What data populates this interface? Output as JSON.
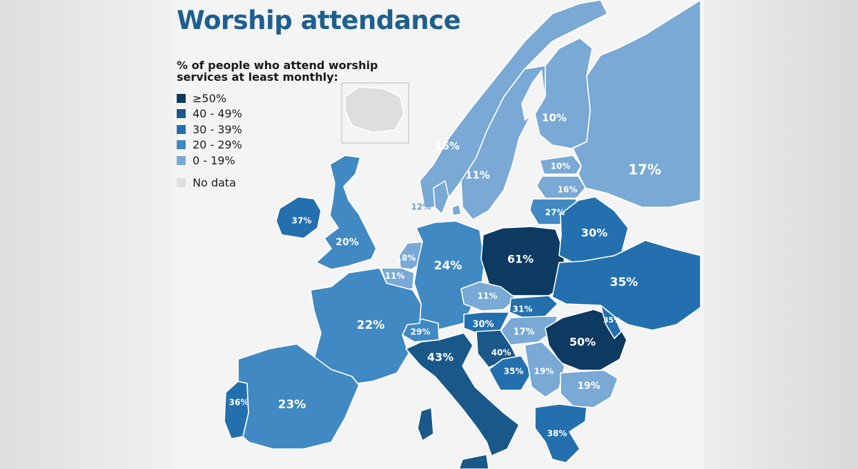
{
  "title": "Worship attendance",
  "subtitle_lines": [
    "% of people who attend worship",
    "services at least monthly:"
  ],
  "legend": [
    {
      "label": "≥50%",
      "color": "#0d3a61"
    },
    {
      "label": "40 - 49%",
      "color": "#1a5889"
    },
    {
      "label": "30 - 39%",
      "color": "#2470ae"
    },
    {
      "label": "20 - 29%",
      "color": "#4189c2"
    },
    {
      "label": "0 - 19%",
      "color": "#79a9d4"
    }
  ],
  "nodata": {
    "label": "No data",
    "color": "#dedede"
  },
  "countries": [
    {
      "name": "Iceland",
      "value": null,
      "label": ""
    },
    {
      "name": "Norway",
      "value": 16,
      "label": "16%"
    },
    {
      "name": "Sweden",
      "value": 11,
      "label": "11%"
    },
    {
      "name": "Finland",
      "value": 10,
      "label": "10%"
    },
    {
      "name": "Estonia",
      "value": 10,
      "label": "10%"
    },
    {
      "name": "Latvia",
      "value": 16,
      "label": "16%"
    },
    {
      "name": "Lithuania",
      "value": 27,
      "label": "27%"
    },
    {
      "name": "Russia",
      "value": 17,
      "label": "17%"
    },
    {
      "name": "Denmark",
      "value": 12,
      "label": "12%"
    },
    {
      "name": "Ireland",
      "value": 37,
      "label": "37%"
    },
    {
      "name": "United Kingdom",
      "value": 20,
      "label": "20%"
    },
    {
      "name": "Netherlands",
      "value": 18,
      "label": "18%"
    },
    {
      "name": "Belgium",
      "value": 11,
      "label": "11%"
    },
    {
      "name": "Germany",
      "value": 24,
      "label": "24%"
    },
    {
      "name": "Poland",
      "value": 61,
      "label": "61%"
    },
    {
      "name": "Belarus",
      "value": 30,
      "label": "30%"
    },
    {
      "name": "Ukraine",
      "value": 35,
      "label": "35%"
    },
    {
      "name": "Czech Republic",
      "value": 11,
      "label": "11%"
    },
    {
      "name": "Slovakia",
      "value": 31,
      "label": "31%"
    },
    {
      "name": "Austria",
      "value": 30,
      "label": "30%"
    },
    {
      "name": "Switzerland",
      "value": 29,
      "label": "29%"
    },
    {
      "name": "France",
      "value": 22,
      "label": "22%"
    },
    {
      "name": "Hungary",
      "value": 17,
      "label": "17%"
    },
    {
      "name": "Romania",
      "value": 50,
      "label": "50%"
    },
    {
      "name": "Moldova",
      "value": 35,
      "label": "35%"
    },
    {
      "name": "Italy",
      "value": 43,
      "label": "43%"
    },
    {
      "name": "Croatia",
      "value": 40,
      "label": "40%"
    },
    {
      "name": "Bosnia",
      "value": 35,
      "label": "35%"
    },
    {
      "name": "Serbia",
      "value": 19,
      "label": "19%"
    },
    {
      "name": "Bulgaria",
      "value": 19,
      "label": "19%"
    },
    {
      "name": "Greece",
      "value": 38,
      "label": "38%"
    },
    {
      "name": "Portugal",
      "value": 36,
      "label": "36%"
    },
    {
      "name": "Spain",
      "value": 23,
      "label": "23%"
    }
  ]
}
